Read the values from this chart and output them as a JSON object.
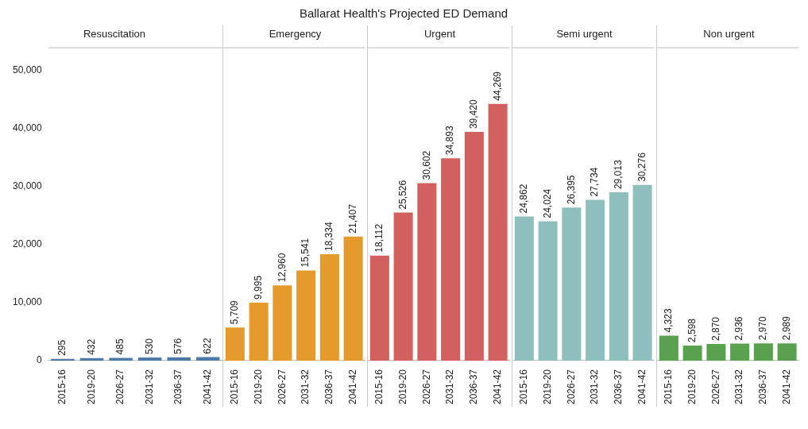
{
  "chart_data": [
    {
      "type": "bar",
      "annotations": [
        "Ballarat Health's Projected ED Demand"
      ],
      "title": "Resuscitation",
      "categories": [
        "2015-16",
        "2019-20",
        "2026-27",
        "2031-32",
        "2036-37",
        "2041-42"
      ],
      "values": [
        295,
        432,
        485,
        530,
        576,
        622
      ],
      "value_labels": [
        "295",
        "432",
        "485",
        "530",
        "576",
        "622"
      ],
      "color": "#4e79a7",
      "ylim": [
        0,
        54000
      ],
      "yticks": [
        0,
        {
          "value": 10000,
          "label": "10,000"
        },
        {
          "value": 20000,
          "label": "20,000"
        },
        {
          "value": 30000,
          "label": "30,000"
        },
        {
          "value": 40000,
          "label": "40,000"
        },
        {
          "value": 50000,
          "label": "50,000"
        }
      ]
    },
    {
      "type": "bar",
      "title": "Emergency",
      "categories": [
        "2015-16",
        "2019-20",
        "2026-27",
        "2031-32",
        "2036-37",
        "2041-42"
      ],
      "values": [
        5709,
        9995,
        12960,
        15541,
        18334,
        21407
      ],
      "value_labels": [
        "5,709",
        "9,995",
        "12,960",
        "15,541",
        "18,334",
        "21,407"
      ],
      "color": "#e49b2b",
      "ylim": [
        0,
        54000
      ],
      "tick_labels": "x"
    },
    {
      "type": "bar",
      "title": "Urgent",
      "categories": [
        "2015-16",
        "2019-20",
        "2026-27",
        "2031-32",
        "2036-37",
        "2041-42"
      ],
      "values": [
        18112,
        25526,
        30602,
        34893,
        39420,
        44269
      ],
      "value_labels": [
        "18,112",
        "25,526",
        "30,602",
        "34,893",
        "39,420",
        "44,269"
      ],
      "color": "#d1605e",
      "ylim": [
        0,
        54000
      ],
      "tick_labels": "x"
    },
    {
      "type": "bar",
      "title": "Semi urgent",
      "categories": [
        "2015-16",
        "2019-20",
        "2026-27",
        "2031-32",
        "2036-37",
        "2041-42"
      ],
      "values": [
        24862,
        24024,
        26395,
        27734,
        29013,
        30276
      ],
      "value_labels": [
        "24,862",
        "24,024",
        "26,395",
        "27,734",
        "29,013",
        "30,276"
      ],
      "color": "#8fbfbc",
      "ylim": [
        0,
        54000
      ],
      "tick_labels": "x"
    },
    {
      "type": "bar",
      "title": "Non urgent",
      "categories": [
        "2015-16",
        "2019-20",
        "2026-27",
        "2031-32",
        "2036-37",
        "2041-42"
      ],
      "values": [
        4323,
        2598,
        2870,
        2936,
        2970,
        2989
      ],
      "value_labels": [
        "4,323",
        "2,598",
        "2,870",
        "2,936",
        "2,970",
        "2,989"
      ],
      "color": "#59a14f",
      "ylim": [
        0,
        54000
      ],
      "tick_labels": "x"
    }
  ]
}
